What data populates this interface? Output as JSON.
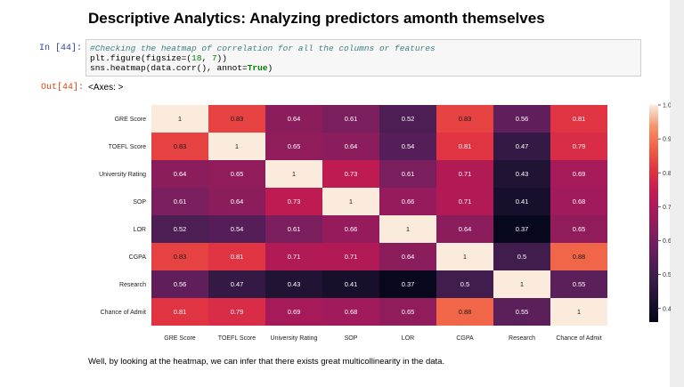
{
  "heading": "Descriptive Analytics: Analyzing predictors amonth themselves",
  "in_prompt": "In [44]:",
  "code": {
    "comment": "#Checking the heatmap of correlation for all the columns or features",
    "line2_fn": "plt.figure(figsize=(",
    "line2_n1": "18",
    "line2_sep": ", ",
    "line2_n2": "7",
    "line2_end": "))",
    "line3_a": "sns.heatmap(data.corr(), annot=",
    "line3_kw": "True",
    "line3_end": ")"
  },
  "out_prompt": "Out[44]:",
  "output_text": "<Axes: >",
  "caption": "Well, by looking at the heatmap, we can infer that there exists great multicollinearity in the data.",
  "chart_data": {
    "type": "heatmap",
    "rows": [
      "GRE Score",
      "TOEFL Score",
      "University Rating",
      "SOP",
      "LOR",
      "CGPA",
      "Research",
      "Chance of Admit"
    ],
    "columns": [
      "GRE Score",
      "TOEFL Score",
      "University Rating",
      "SOP",
      "LOR",
      "CGPA",
      "Research",
      "Chance of Admit"
    ],
    "values": [
      [
        1,
        0.83,
        0.64,
        0.61,
        0.52,
        0.83,
        0.56,
        0.81
      ],
      [
        0.83,
        1,
        0.65,
        0.64,
        0.54,
        0.81,
        0.47,
        0.79
      ],
      [
        0.64,
        0.65,
        1,
        0.73,
        0.61,
        0.71,
        0.43,
        0.69
      ],
      [
        0.61,
        0.64,
        0.73,
        1,
        0.66,
        0.71,
        0.41,
        0.68
      ],
      [
        0.52,
        0.54,
        0.61,
        0.66,
        1,
        0.64,
        0.37,
        0.65
      ],
      [
        0.83,
        0.81,
        0.71,
        0.71,
        0.64,
        1,
        0.5,
        0.88
      ],
      [
        0.56,
        0.47,
        0.43,
        0.41,
        0.37,
        0.5,
        1,
        0.55
      ],
      [
        0.81,
        0.79,
        0.69,
        0.68,
        0.65,
        0.88,
        0.55,
        1
      ]
    ],
    "annotations": [
      [
        "1",
        "0.83",
        "0.64",
        "0.61",
        "0.52",
        "0.83",
        "0.56",
        "0.81"
      ],
      [
        "0.83",
        "1",
        "0.65",
        "0.64",
        "0.54",
        "0.81",
        "0.47",
        "0.79"
      ],
      [
        "0.64",
        "0.65",
        "1",
        "0.73",
        "0.61",
        "0.71",
        "0.43",
        "0.69"
      ],
      [
        "0.61",
        "0.64",
        "0.73",
        "1",
        "0.66",
        "0.71",
        "0.41",
        "0.68"
      ],
      [
        "0.52",
        "0.54",
        "0.61",
        "0.66",
        "1",
        "0.64",
        "0.37",
        "0.65"
      ],
      [
        "0.83",
        "0.81",
        "0.71",
        "0.71",
        "0.64",
        "1",
        "0.5",
        "0.88"
      ],
      [
        "0.56",
        "0.47",
        "0.43",
        "0.41",
        "0.37",
        "0.5",
        "1",
        "0.55"
      ],
      [
        "0.81",
        "0.79",
        "0.69",
        "0.68",
        "0.65",
        "0.88",
        "0.55",
        "1"
      ]
    ],
    "colormap": "rocket",
    "colorbar_range": [
      0.36,
      1.0
    ],
    "colorbar_ticks": [
      0.4,
      0.5,
      0.6,
      0.7,
      0.8,
      0.9,
      1.0
    ],
    "colorbar_tick_labels": [
      "0.4",
      "0.5",
      "0.6",
      "0.7",
      "0.8",
      "0.9",
      "1.0"
    ]
  }
}
